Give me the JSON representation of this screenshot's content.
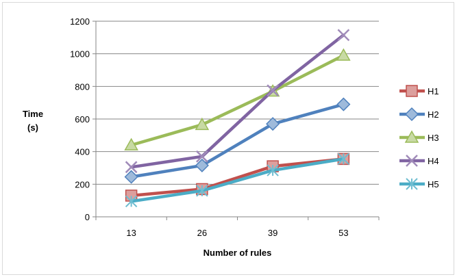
{
  "chart_data": {
    "type": "line",
    "xlabel": "Number of rules",
    "ylabel": [
      "Time",
      "(s)"
    ],
    "categories": [
      "13",
      "26",
      "39",
      "53"
    ],
    "ylim": [
      0,
      1200
    ],
    "yticks": [
      0,
      200,
      400,
      600,
      800,
      1000,
      1200
    ],
    "grid": "horizontal",
    "legend_position": "right",
    "series": [
      {
        "name": "H1",
        "color": "#c0504d",
        "marker": "square",
        "values": [
          130,
          170,
          310,
          355
        ]
      },
      {
        "name": "H2",
        "color": "#4f81bd",
        "marker": "diamond",
        "values": [
          245,
          315,
          570,
          690
        ]
      },
      {
        "name": "H3",
        "color": "#9bbb59",
        "marker": "triangle",
        "values": [
          440,
          565,
          770,
          990
        ]
      },
      {
        "name": "H4",
        "color": "#8064a2",
        "marker": "x",
        "values": [
          305,
          370,
          775,
          1115
        ]
      },
      {
        "name": "H5",
        "color": "#4bacc6",
        "marker": "asterisk",
        "values": [
          95,
          160,
          285,
          355
        ]
      }
    ]
  }
}
